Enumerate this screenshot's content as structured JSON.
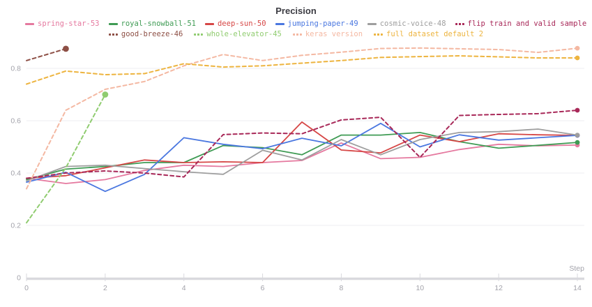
{
  "chart_data": {
    "type": "line",
    "title": "Precision",
    "xlabel": "Step",
    "x": [
      0,
      1,
      2,
      3,
      4,
      5,
      6,
      7,
      8,
      9,
      10,
      11,
      12,
      13,
      14
    ],
    "x_ticks": [
      0,
      2,
      4,
      6,
      8,
      10,
      12,
      14
    ],
    "y_ticks": [
      0,
      0.2,
      0.4,
      0.6,
      0.8
    ],
    "xlim": [
      0,
      14
    ],
    "ylim": [
      0,
      0.95
    ],
    "grid": "horizontal",
    "legend_position": "top",
    "axis_text_color": "#a2a2aa",
    "grid_color": "#ededf1",
    "axis_line_color": "#d9d9de",
    "series": [
      {
        "name": "spring-star-53",
        "color": "#e5799f",
        "style": "solid",
        "values": [
          0.38,
          0.36,
          0.375,
          0.41,
          0.43,
          0.425,
          0.44,
          0.448,
          0.515,
          0.455,
          0.46,
          0.49,
          0.51,
          0.504,
          0.507
        ]
      },
      {
        "name": "royal-snowball-51",
        "color": "#3f9b54",
        "style": "solid",
        "values": [
          0.375,
          0.415,
          0.425,
          0.44,
          0.44,
          0.505,
          0.497,
          0.47,
          0.545,
          0.545,
          0.555,
          0.52,
          0.495,
          0.506,
          0.517
        ]
      },
      {
        "name": "deep-sun-50",
        "color": "#d64746",
        "style": "solid",
        "values": [
          0.38,
          0.39,
          0.42,
          0.45,
          0.44,
          0.443,
          0.44,
          0.595,
          0.488,
          0.477,
          0.545,
          0.52,
          0.55,
          0.546,
          0.544
        ]
      },
      {
        "name": "jumping-paper-49",
        "color": "#4a77e0",
        "style": "solid",
        "values": [
          0.365,
          0.403,
          0.33,
          0.395,
          0.535,
          0.51,
          0.493,
          0.533,
          0.504,
          0.59,
          0.5,
          0.546,
          0.526,
          0.535,
          0.544
        ]
      },
      {
        "name": "cosmic-voice-48",
        "color": "#9e9e9e",
        "style": "solid",
        "values": [
          0.37,
          0.425,
          0.43,
          0.417,
          0.405,
          0.395,
          0.487,
          0.45,
          0.528,
          0.47,
          0.528,
          0.555,
          0.558,
          0.568,
          0.545
        ]
      },
      {
        "name": "flip train and valid sample",
        "color": "#a82858",
        "style": "dashed",
        "values": [
          0.38,
          0.4,
          0.408,
          0.4,
          0.385,
          0.547,
          0.553,
          0.55,
          0.603,
          0.613,
          0.46,
          0.62,
          0.624,
          0.627,
          0.64
        ]
      },
      {
        "name": "good-breeze-46",
        "color": "#8d4f45",
        "style": "dashed",
        "values": [
          0.83,
          0.875
        ]
      },
      {
        "name": "whole-elevator-45",
        "color": "#90cc70",
        "style": "dashed",
        "values": [
          0.21,
          0.42,
          0.7
        ]
      },
      {
        "name": "keras version",
        "color": "#f4b8a2",
        "style": "dashed",
        "values": [
          0.34,
          0.64,
          0.72,
          0.75,
          0.81,
          0.853,
          0.83,
          0.85,
          0.862,
          0.876,
          0.878,
          0.875,
          0.872,
          0.861,
          0.877
        ]
      },
      {
        "name": "full dataset default 2",
        "color": "#edb43f",
        "style": "dashed",
        "values": [
          0.74,
          0.79,
          0.776,
          0.78,
          0.818,
          0.805,
          0.81,
          0.82,
          0.83,
          0.842,
          0.845,
          0.848,
          0.844,
          0.84,
          0.84
        ]
      }
    ]
  }
}
